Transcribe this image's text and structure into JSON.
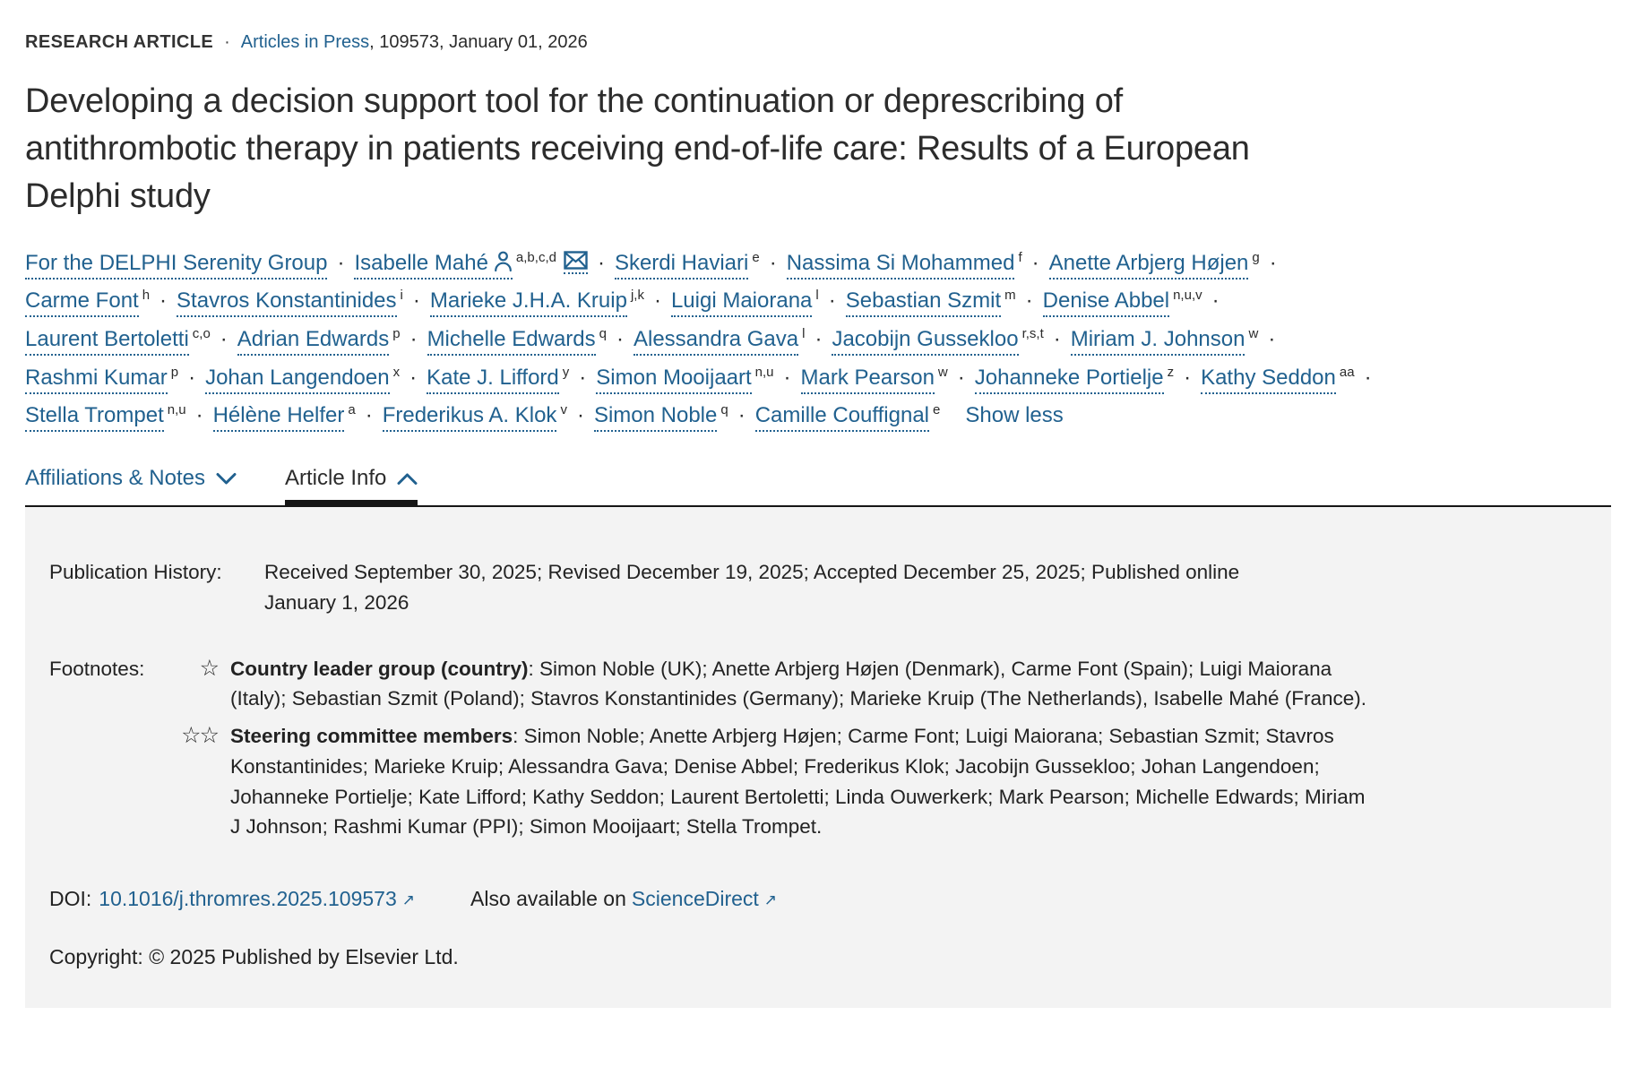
{
  "eyebrow": {
    "kicker": "RESEARCH ARTICLE",
    "separator": "·",
    "link": "Articles in Press",
    "rest": ", 109573, January 01, 2026"
  },
  "title": "Developing a decision support tool for the continuation or deprescribing of antithrombotic therapy in patients receiving end-of-life care: Results of a European Delphi study",
  "authors": {
    "separator": "·",
    "show_less": "Show less",
    "items": [
      {
        "name": "For the DELPHI Serenity Group",
        "sup": ""
      },
      {
        "name": "Isabelle Mahé",
        "sup": "a,b,c,d",
        "person_icon": true,
        "mail_icon": true
      },
      {
        "name": "Skerdi Haviari",
        "sup": "e"
      },
      {
        "name": "Nassima Si Mohammed",
        "sup": "f"
      },
      {
        "name": "Anette Arbjerg Højen",
        "sup": "g"
      },
      {
        "name": "Carme Font",
        "sup": "h"
      },
      {
        "name": "Stavros Konstantinides",
        "sup": "i"
      },
      {
        "name": "Marieke J.H.A. Kruip",
        "sup": "j,k"
      },
      {
        "name": "Luigi Maiorana",
        "sup": "l"
      },
      {
        "name": "Sebastian Szmit",
        "sup": "m"
      },
      {
        "name": "Denise Abbel",
        "sup": "n,u,v"
      },
      {
        "name": "Laurent Bertoletti",
        "sup": "c,o"
      },
      {
        "name": "Adrian Edwards",
        "sup": "p"
      },
      {
        "name": "Michelle Edwards",
        "sup": "q"
      },
      {
        "name": "Alessandra Gava",
        "sup": "l"
      },
      {
        "name": "Jacobijn Gussekloo",
        "sup": "r,s,t"
      },
      {
        "name": "Miriam J. Johnson",
        "sup": "w"
      },
      {
        "name": "Rashmi Kumar",
        "sup": "p"
      },
      {
        "name": "Johan Langendoen",
        "sup": "x"
      },
      {
        "name": "Kate J. Lifford",
        "sup": "y"
      },
      {
        "name": "Simon Mooijaart",
        "sup": "n,u"
      },
      {
        "name": "Mark Pearson",
        "sup": "w"
      },
      {
        "name": "Johanneke Portielje",
        "sup": "z"
      },
      {
        "name": "Kathy Seddon",
        "sup": "aa"
      },
      {
        "name": "Stella Trompet",
        "sup": "n,u"
      },
      {
        "name": "Hélène Helfer",
        "sup": "a"
      },
      {
        "name": "Frederikus A. Klok",
        "sup": "v"
      },
      {
        "name": "Simon Noble",
        "sup": "q"
      },
      {
        "name": "Camille Couffignal",
        "sup": "e"
      }
    ]
  },
  "tabs": [
    {
      "label": "Affiliations & Notes",
      "state": "collapsed"
    },
    {
      "label": "Article Info",
      "state": "expanded"
    }
  ],
  "info_panel": {
    "publication_history": {
      "label": "Publication History:",
      "text": "Received September 30, 2025; Revised December 19, 2025; Accepted December 25, 2025; Published online January 1, 2026"
    },
    "footnotes": {
      "label": "Footnotes:",
      "items": [
        {
          "marker": "☆",
          "bold": "Country leader group (country)",
          "text": ": Simon Noble (UK); Anette Arbjerg Højen (Denmark), Carme Font (Spain); Luigi Maiorana (Italy); Sebastian Szmit (Poland); Stavros Konstantinides (Germany); Marieke Kruip (The Netherlands), Isabelle Mahé (France)."
        },
        {
          "marker": "☆☆",
          "bold": "Steering committee members",
          "text": ": Simon Noble; Anette Arbjerg Højen; Carme Font; Luigi Maiorana; Sebastian Szmit; Stavros Konstantinides; Marieke Kruip; Alessandra Gava; Denise Abbel; Frederikus Klok; Jacobijn Gussekloo; Johan Langendoen; Johanneke Portielje; Kate Lifford; Kathy Seddon; Laurent Bertoletti; Linda Ouwerkerk; Mark Pearson; Michelle Edwards; Miriam J Johnson; Rashmi Kumar (PPI); Simon Mooijaart; Stella Trompet."
        }
      ]
    },
    "doi": {
      "label": "DOI:",
      "link": "10.1016/j.thromres.2025.109573",
      "external_icon": "↗",
      "also": "Also available on",
      "sd_link": "ScienceDirect"
    },
    "copyright": "Copyright: © 2025 Published by Elsevier Ltd."
  },
  "colors": {
    "link_blue": "#21618f",
    "text_dark": "#2b2b2b",
    "panel_bg": "#f3f3f3",
    "tab_underline": "#151515"
  }
}
